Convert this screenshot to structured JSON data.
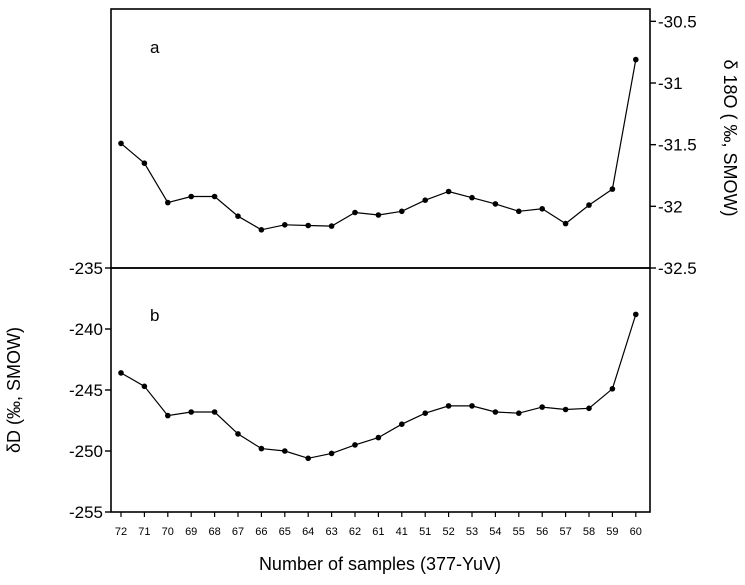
{
  "chart_data": [
    {
      "type": "line",
      "panel_label": "a",
      "ylabel": "δ 18O ( ‰, SMOW)",
      "ylim": [
        -32.5,
        -30.4
      ],
      "y_axis_side": "right",
      "y_ticks": [
        "-30.5",
        "-31",
        "-31.5",
        "-32",
        "-32.5"
      ],
      "categories": [
        "72",
        "71",
        "70",
        "69",
        "68",
        "67",
        "66",
        "65",
        "64",
        "63",
        "62",
        "61",
        "41",
        "51",
        "52",
        "53",
        "54",
        "55",
        "56",
        "57",
        "58",
        "59",
        "60"
      ],
      "values": [
        -31.49,
        -31.65,
        -31.97,
        -31.92,
        -31.92,
        -32.08,
        -32.19,
        -32.15,
        -32.155,
        -32.16,
        -32.05,
        -32.07,
        -32.04,
        -31.95,
        -31.88,
        -31.93,
        -31.98,
        -32.04,
        -32.02,
        -32.14,
        -31.99,
        -31.86,
        -30.81
      ]
    },
    {
      "type": "line",
      "panel_label": "b",
      "ylabel": "δD (‰, SMOW)",
      "ylim": [
        -255,
        -235
      ],
      "y_axis_side": "left",
      "y_ticks": [
        "-235",
        "-240",
        "-245",
        "-250",
        "-255"
      ],
      "xlabel": "Number of samples (377-YuV)",
      "categories": [
        "72",
        "71",
        "70",
        "69",
        "68",
        "67",
        "66",
        "65",
        "64",
        "63",
        "62",
        "61",
        "41",
        "51",
        "52",
        "53",
        "54",
        "55",
        "56",
        "57",
        "58",
        "59",
        "60"
      ],
      "values": [
        -243.6,
        -244.7,
        -247.1,
        -246.8,
        -246.8,
        -248.6,
        -249.8,
        -250.0,
        -250.6,
        -250.2,
        -249.5,
        -248.9,
        -247.8,
        -246.9,
        -246.3,
        -246.3,
        -246.8,
        -246.9,
        -246.4,
        -246.6,
        -246.5,
        -244.9,
        -238.8
      ]
    }
  ]
}
